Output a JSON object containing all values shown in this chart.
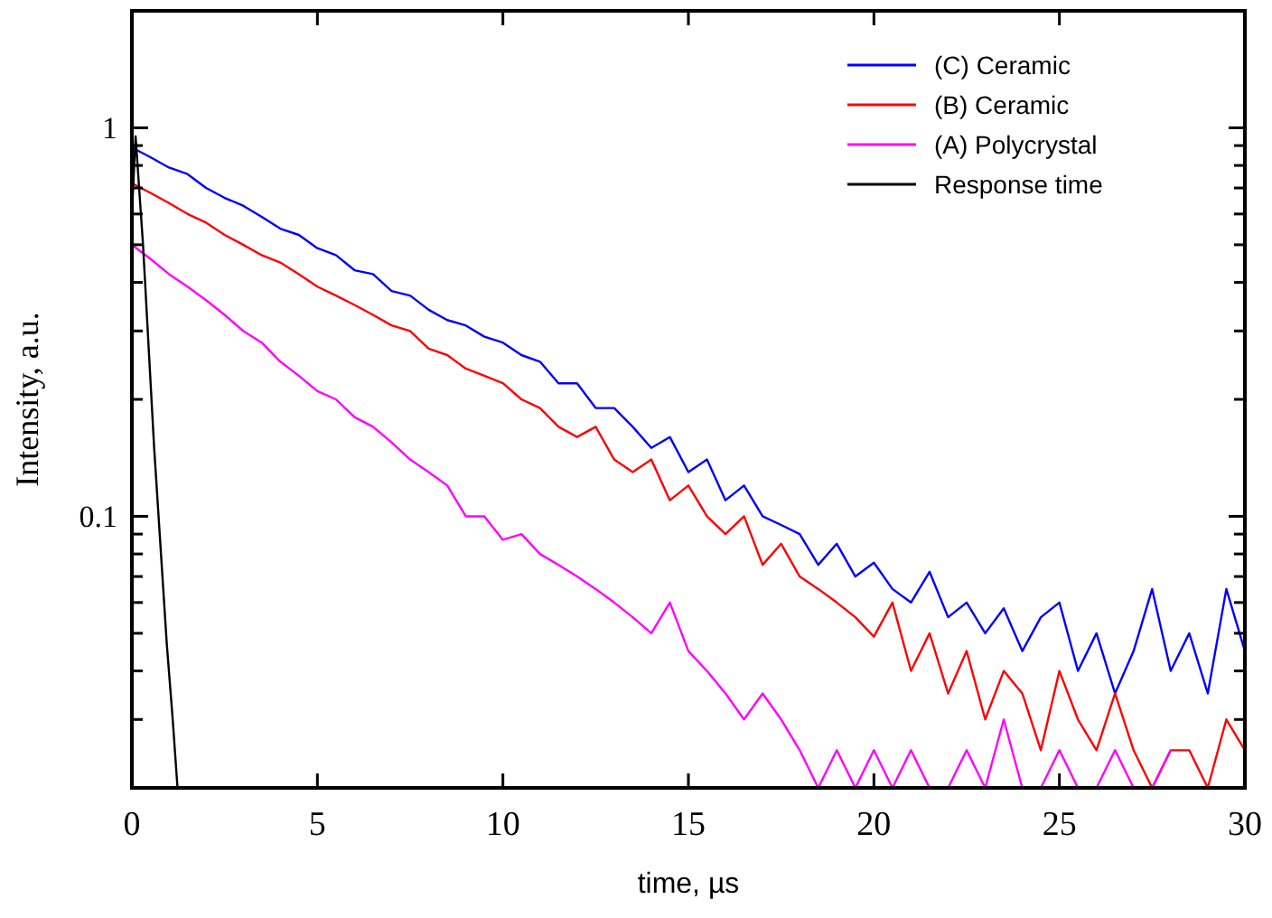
{
  "chart_data": {
    "type": "line",
    "xlabel": "time, µs",
    "ylabel": "Intensity, a.u.",
    "log": true,
    "legend": "top right",
    "grid": false,
    "xlim": [
      0,
      30
    ],
    "ylim": [
      0.02,
      2
    ],
    "xticks": [
      0,
      5,
      10,
      15,
      20,
      25,
      30
    ],
    "yticks": [
      {
        "value": 0.02,
        "label": null
      },
      {
        "value": 0.03,
        "label": null
      },
      {
        "value": 0.04,
        "label": null
      },
      {
        "value": 0.05,
        "label": null
      },
      {
        "value": 0.06,
        "label": null
      },
      {
        "value": 0.07,
        "label": null
      },
      {
        "value": 0.08,
        "label": null
      },
      {
        "value": 0.09,
        "label": null
      },
      0.1,
      {
        "value": 0.2,
        "label": null
      },
      {
        "value": 0.3,
        "label": null
      },
      {
        "value": 0.4,
        "label": null
      },
      {
        "value": 0.5,
        "label": null
      },
      {
        "value": 0.6,
        "label": null
      },
      {
        "value": 0.7,
        "label": null
      },
      {
        "value": 0.8,
        "label": null
      },
      {
        "value": 0.9,
        "label": null
      },
      1,
      {
        "value": 2,
        "label": null
      }
    ],
    "x": [
      0,
      0.5,
      1,
      1.5,
      2,
      2.5,
      3,
      3.5,
      4,
      4.5,
      5,
      5.5,
      6,
      6.5,
      7,
      7.5,
      8,
      8.5,
      9,
      9.5,
      10,
      10.5,
      11,
      11.5,
      12,
      12.5,
      13,
      13.5,
      14,
      14.5,
      15,
      15.5,
      16,
      16.5,
      17,
      17.5,
      18,
      18.5,
      19,
      19.5,
      20,
      20.5,
      21,
      21.5,
      22,
      22.5,
      23,
      23.5,
      24,
      24.5,
      25,
      25.5,
      26,
      26.5,
      27,
      27.5,
      28,
      28.5,
      29,
      29.5,
      30
    ],
    "series": [
      {
        "name": "(C) Ceramic",
        "color": "#0000ff",
        "values": [
          0.89,
          0.84,
          0.79,
          0.76,
          0.7,
          0.66,
          0.63,
          0.59,
          0.55,
          0.53,
          0.49,
          0.47,
          0.43,
          0.42,
          0.38,
          0.37,
          0.34,
          0.32,
          0.31,
          0.29,
          0.28,
          0.26,
          0.25,
          0.22,
          0.22,
          0.19,
          0.19,
          0.17,
          0.15,
          0.16,
          0.13,
          0.14,
          0.11,
          0.12,
          0.1,
          0.095,
          0.09,
          0.075,
          0.085,
          0.07,
          0.076,
          0.065,
          0.06,
          0.072,
          0.055,
          0.06,
          0.05,
          0.058,
          0.045,
          0.055,
          0.06,
          0.04,
          0.05,
          0.035,
          0.045,
          0.065,
          0.04,
          0.05,
          0.035,
          0.065,
          0.045
        ]
      },
      {
        "name": "(B) Ceramic",
        "color": "#ff0000",
        "values": [
          0.72,
          0.68,
          0.64,
          0.6,
          0.57,
          0.53,
          0.5,
          0.47,
          0.45,
          0.42,
          0.39,
          0.37,
          0.35,
          0.33,
          0.31,
          0.3,
          0.27,
          0.26,
          0.24,
          0.23,
          0.22,
          0.2,
          0.19,
          0.17,
          0.16,
          0.17,
          0.14,
          0.13,
          0.14,
          0.11,
          0.12,
          0.1,
          0.09,
          0.1,
          0.075,
          0.085,
          0.07,
          0.065,
          0.06,
          0.055,
          0.049,
          0.06,
          0.04,
          0.05,
          0.035,
          0.045,
          0.03,
          0.04,
          0.035,
          0.025,
          0.04,
          0.03,
          0.025,
          0.035,
          0.025,
          0.02,
          0.025,
          0.025,
          0.02,
          0.03,
          0.025
        ]
      },
      {
        "name": "(A) Polycrystal",
        "color": "#ff00ff",
        "values": [
          0.5,
          0.46,
          0.42,
          0.39,
          0.36,
          0.33,
          0.3,
          0.28,
          0.25,
          0.23,
          0.21,
          0.2,
          0.18,
          0.17,
          0.155,
          0.14,
          0.13,
          0.12,
          0.1,
          0.1,
          0.087,
          0.09,
          0.08,
          0.075,
          0.07,
          0.065,
          0.06,
          0.055,
          0.05,
          0.06,
          0.045,
          0.04,
          0.035,
          0.03,
          0.035,
          0.03,
          0.025,
          0.02,
          0.025,
          0.02,
          0.025,
          0.02,
          0.025,
          0.02,
          0.02,
          0.025,
          0.02,
          0.03,
          0.02,
          0.02,
          0.025,
          0.02,
          0.02,
          0.025,
          0.02,
          0.02,
          0.025,
          null,
          null,
          null,
          null
        ]
      },
      {
        "name": "Response time",
        "color": "#000000",
        "x": [
          0,
          0.1,
          0.3,
          0.6,
          0.94,
          1.1,
          1.23
        ],
        "values": [
          0.6,
          0.95,
          0.5,
          0.15,
          0.047,
          0.03,
          0.02
        ]
      }
    ]
  }
}
